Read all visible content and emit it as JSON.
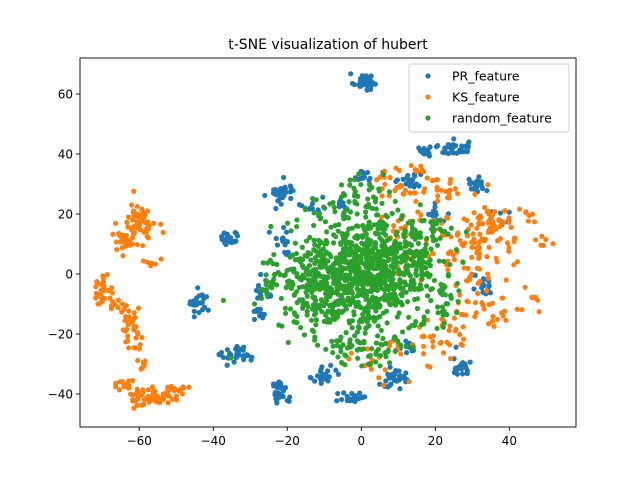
{
  "chart_data": {
    "type": "scatter",
    "title": "t-SNE visualization of hubert",
    "xlabel": "",
    "ylabel": "",
    "xlim": [
      -76,
      58
    ],
    "ylim": [
      -51,
      72
    ],
    "xticks": [
      -60,
      -40,
      -20,
      0,
      20,
      40
    ],
    "yticks": [
      -40,
      -20,
      0,
      20,
      40,
      60
    ],
    "grid": false,
    "legend_position": "top-right",
    "series": [
      {
        "name": "PR_feature",
        "color": "#1f77b4",
        "clusters": [
          {
            "cx": 1,
            "cy": 64,
            "sx": 1.6,
            "sy": 1.4,
            "n": 40
          },
          {
            "cx": 25,
            "cy": 42,
            "sx": 2.0,
            "sy": 1.2,
            "n": 35
          },
          {
            "cx": 17,
            "cy": 41,
            "sx": 1.2,
            "sy": 1.2,
            "n": 12
          },
          {
            "cx": 31,
            "cy": 30,
            "sx": 1.6,
            "sy": 1.2,
            "n": 22
          },
          {
            "cx": 13,
            "cy": 31,
            "sx": 1.5,
            "sy": 1.4,
            "n": 20
          },
          {
            "cx": 1,
            "cy": 33,
            "sx": 1.5,
            "sy": 1.2,
            "n": 15
          },
          {
            "cx": -21,
            "cy": 27,
            "sx": 1.8,
            "sy": 2.0,
            "n": 28
          },
          {
            "cx": -36,
            "cy": 12,
            "sx": 1.5,
            "sy": 1.4,
            "n": 22
          },
          {
            "cx": -44,
            "cy": -10,
            "sx": 1.5,
            "sy": 2.0,
            "n": 25
          },
          {
            "cx": -33,
            "cy": -27,
            "sx": 2.2,
            "sy": 1.5,
            "n": 35
          },
          {
            "cx": -22,
            "cy": -39,
            "sx": 1.2,
            "sy": 2.0,
            "n": 28
          },
          {
            "cx": -10,
            "cy": -34,
            "sx": 1.5,
            "sy": 1.8,
            "n": 25
          },
          {
            "cx": -2,
            "cy": -41,
            "sx": 1.8,
            "sy": 1.5,
            "n": 25
          },
          {
            "cx": 9,
            "cy": -35,
            "sx": 2.5,
            "sy": 1.5,
            "n": 35
          },
          {
            "cx": 27,
            "cy": -30,
            "sx": 1.3,
            "sy": 2.0,
            "n": 20
          },
          {
            "cx": -26,
            "cy": -5,
            "sx": 1.5,
            "sy": 2.5,
            "n": 14
          },
          {
            "cx": -27,
            "cy": -13,
            "sx": 1.2,
            "sy": 1.2,
            "n": 10
          },
          {
            "cx": -21,
            "cy": 10,
            "sx": 1.5,
            "sy": 2.5,
            "n": 14
          },
          {
            "cx": 33,
            "cy": -5,
            "sx": 1.5,
            "sy": 2.5,
            "n": 14
          },
          {
            "cx": 20,
            "cy": 20,
            "sx": 2.0,
            "sy": 2.0,
            "n": 14
          },
          {
            "cx": -5,
            "cy": 24,
            "sx": 2.0,
            "sy": 1.5,
            "n": 10
          },
          {
            "cx": 12,
            "cy": -24,
            "sx": 2.0,
            "sy": 1.2,
            "n": 14
          },
          {
            "cx": -12,
            "cy": 22,
            "sx": 2.0,
            "sy": 1.5,
            "n": 10
          },
          {
            "cx": 38,
            "cy": 18,
            "sx": 1.5,
            "sy": 1.5,
            "n": 6
          }
        ]
      },
      {
        "name": "KS_feature",
        "color": "#ff7f0e",
        "clusters": [
          {
            "cx": -60,
            "cy": 17,
            "sx": 2.2,
            "sy": 3.5,
            "n": 60
          },
          {
            "cx": -64,
            "cy": 11,
            "sx": 2.0,
            "sy": 1.5,
            "n": 20
          },
          {
            "cx": -57,
            "cy": 4,
            "sx": 1.0,
            "sy": 1.0,
            "n": 6
          },
          {
            "cx": -70,
            "cy": -5,
            "sx": 1.5,
            "sy": 2.5,
            "n": 25
          },
          {
            "cx": -66,
            "cy": -10,
            "sx": 1.5,
            "sy": 1.5,
            "n": 12
          },
          {
            "cx": -62,
            "cy": -19,
            "sx": 1.3,
            "sy": 3.0,
            "n": 30
          },
          {
            "cx": -59,
            "cy": -31,
            "sx": 1.0,
            "sy": 1.2,
            "n": 8
          },
          {
            "cx": -64,
            "cy": -37,
            "sx": 1.5,
            "sy": 1.2,
            "n": 14
          },
          {
            "cx": -56,
            "cy": -41,
            "sx": 3.5,
            "sy": 1.5,
            "n": 55
          },
          {
            "cx": -50,
            "cy": -38,
            "sx": 1.2,
            "sy": 1.0,
            "n": 12
          },
          {
            "cx": 22,
            "cy": 28,
            "sx": 2.5,
            "sy": 2.0,
            "n": 20
          },
          {
            "cx": 10,
            "cy": 30,
            "sx": 4.0,
            "sy": 3.0,
            "n": 25
          },
          {
            "cx": 36,
            "cy": 19,
            "sx": 3.0,
            "sy": 2.5,
            "n": 20
          },
          {
            "cx": 45,
            "cy": 20,
            "sx": 1.5,
            "sy": 1.5,
            "n": 6
          },
          {
            "cx": 49,
            "cy": 10,
            "sx": 1.5,
            "sy": 1.0,
            "n": 6
          },
          {
            "cx": 32,
            "cy": 10,
            "sx": 6.0,
            "sy": 7.0,
            "n": 90
          },
          {
            "cx": 35,
            "cy": -12,
            "sx": 5.0,
            "sy": 4.0,
            "n": 35
          },
          {
            "cx": 47,
            "cy": -8,
            "sx": 1.0,
            "sy": 0.8,
            "n": 5
          },
          {
            "cx": 20,
            "cy": -22,
            "sx": 5.0,
            "sy": 4.0,
            "n": 30
          },
          {
            "cx": 4,
            "cy": -29,
            "sx": 5.0,
            "sy": 3.0,
            "n": 20
          },
          {
            "cx": 15,
            "cy": 10,
            "sx": 8.0,
            "sy": 8.0,
            "n": 50
          },
          {
            "cx": 16,
            "cy": 33,
            "sx": 1.5,
            "sy": 1.5,
            "n": 8
          }
        ]
      },
      {
        "name": "random_feature",
        "color": "#2ca02c",
        "clusters": [
          {
            "cx": 0,
            "cy": 0,
            "sx": 9.0,
            "sy": 10.0,
            "n": 780
          },
          {
            "cx": -12,
            "cy": -5,
            "sx": 5.0,
            "sy": 7.0,
            "n": 120
          },
          {
            "cx": 10,
            "cy": 5,
            "sx": 6.0,
            "sy": 7.0,
            "n": 120
          },
          {
            "cx": 0,
            "cy": 25,
            "sx": 5.0,
            "sy": 3.0,
            "n": 40
          },
          {
            "cx": 0,
            "cy": -25,
            "sx": 6.0,
            "sy": 3.0,
            "n": 50
          },
          {
            "cx": -25,
            "cy": -2,
            "sx": 2.0,
            "sy": 4.0,
            "n": 25
          },
          {
            "cx": 22,
            "cy": -12,
            "sx": 3.0,
            "sy": 4.0,
            "n": 30
          },
          {
            "cx": 20,
            "cy": 15,
            "sx": 2.5,
            "sy": 3.0,
            "n": 20
          }
        ]
      }
    ]
  }
}
